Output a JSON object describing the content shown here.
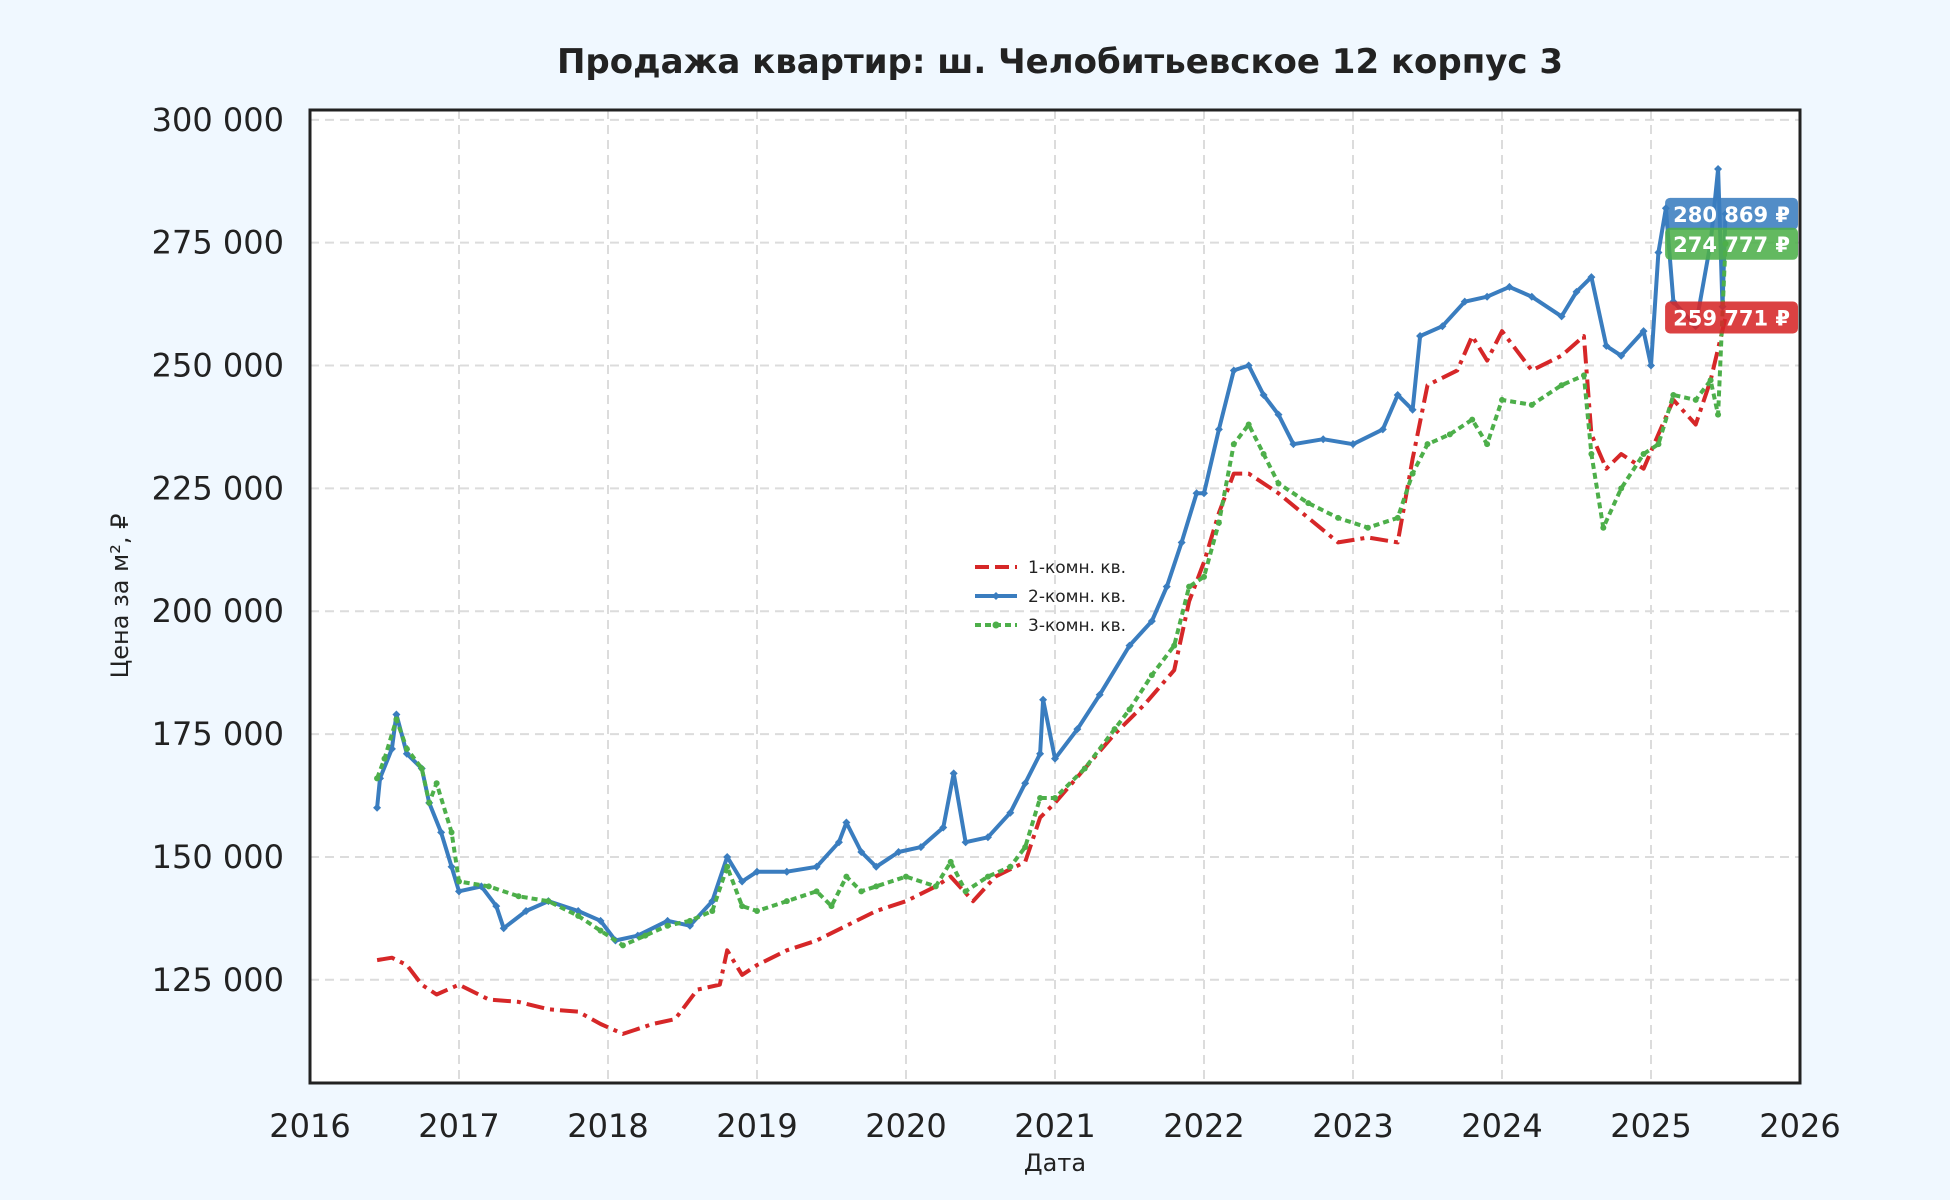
{
  "chart_data": {
    "type": "line",
    "title": "Продажа квартир: ш. Челобитьевское 12 корпус 3",
    "xlabel": "Дата",
    "ylabel": "Цена за м², ₽",
    "xlim": [
      2016,
      2026
    ],
    "ylim": [
      104000,
      302000
    ],
    "x_ticks": [
      "2016",
      "2017",
      "2018",
      "2019",
      "2020",
      "2021",
      "2022",
      "2023",
      "2024",
      "2025",
      "2026"
    ],
    "y_ticks": [
      "125 000",
      "150 000",
      "175 000",
      "200 000",
      "225 000",
      "250 000",
      "275 000",
      "300 000"
    ],
    "grid": true,
    "legend_position": "center",
    "series": [
      {
        "name": "1-комн. кв.",
        "color": "#d62728",
        "line_style": "dash-dot",
        "end_label": "259 771 ₽",
        "points": [
          [
            2016.45,
            129000
          ],
          [
            2016.55,
            129500
          ],
          [
            2016.65,
            128000
          ],
          [
            2016.75,
            124000
          ],
          [
            2016.85,
            122000
          ],
          [
            2017.0,
            124000
          ],
          [
            2017.2,
            121000
          ],
          [
            2017.4,
            120500
          ],
          [
            2017.6,
            119000
          ],
          [
            2017.8,
            118500
          ],
          [
            2017.95,
            116000
          ],
          [
            2018.1,
            114000
          ],
          [
            2018.3,
            116000
          ],
          [
            2018.45,
            117000
          ],
          [
            2018.6,
            123000
          ],
          [
            2018.75,
            124000
          ],
          [
            2018.8,
            131000
          ],
          [
            2018.9,
            126000
          ],
          [
            2019.0,
            128000
          ],
          [
            2019.2,
            131000
          ],
          [
            2019.4,
            133000
          ],
          [
            2019.6,
            136000
          ],
          [
            2019.8,
            139000
          ],
          [
            2020.0,
            141000
          ],
          [
            2020.2,
            144000
          ],
          [
            2020.3,
            146000
          ],
          [
            2020.45,
            141000
          ],
          [
            2020.6,
            146000
          ],
          [
            2020.8,
            149000
          ],
          [
            2020.9,
            158000
          ],
          [
            2021.0,
            161000
          ],
          [
            2021.2,
            168000
          ],
          [
            2021.4,
            175000
          ],
          [
            2021.6,
            181000
          ],
          [
            2021.8,
            188000
          ],
          [
            2021.9,
            202000
          ],
          [
            2022.0,
            210000
          ],
          [
            2022.1,
            220000
          ],
          [
            2022.2,
            228000
          ],
          [
            2022.3,
            228000
          ],
          [
            2022.5,
            224000
          ],
          [
            2022.7,
            219000
          ],
          [
            2022.9,
            214000
          ],
          [
            2023.1,
            215000
          ],
          [
            2023.3,
            214000
          ],
          [
            2023.4,
            231000
          ],
          [
            2023.5,
            246000
          ],
          [
            2023.7,
            249000
          ],
          [
            2023.8,
            256000
          ],
          [
            2023.9,
            251000
          ],
          [
            2024.0,
            257000
          ],
          [
            2024.2,
            249000
          ],
          [
            2024.4,
            252000
          ],
          [
            2024.55,
            256000
          ],
          [
            2024.6,
            236000
          ],
          [
            2024.7,
            229000
          ],
          [
            2024.8,
            232000
          ],
          [
            2024.95,
            229000
          ],
          [
            2025.05,
            236000
          ],
          [
            2025.15,
            243000
          ],
          [
            2025.3,
            238000
          ],
          [
            2025.4,
            247000
          ],
          [
            2025.5,
            259771
          ]
        ]
      },
      {
        "name": "2-комн. кв.",
        "color": "#3a7dbf",
        "line_style": "solid",
        "end_label": "280 869 ₽",
        "points": [
          [
            2016.45,
            160000
          ],
          [
            2016.47,
            166000
          ],
          [
            2016.55,
            172000
          ],
          [
            2016.58,
            179000
          ],
          [
            2016.65,
            171000
          ],
          [
            2016.75,
            168000
          ],
          [
            2016.8,
            161000
          ],
          [
            2016.88,
            155000
          ],
          [
            2016.95,
            148000
          ],
          [
            2017.0,
            143000
          ],
          [
            2017.15,
            144000
          ],
          [
            2017.25,
            140000
          ],
          [
            2017.3,
            135500
          ],
          [
            2017.45,
            139000
          ],
          [
            2017.6,
            141000
          ],
          [
            2017.8,
            139000
          ],
          [
            2017.95,
            137000
          ],
          [
            2018.05,
            133000
          ],
          [
            2018.2,
            134000
          ],
          [
            2018.4,
            137000
          ],
          [
            2018.55,
            136000
          ],
          [
            2018.7,
            141000
          ],
          [
            2018.8,
            150000
          ],
          [
            2018.9,
            145000
          ],
          [
            2019.0,
            147000
          ],
          [
            2019.2,
            147000
          ],
          [
            2019.4,
            148000
          ],
          [
            2019.55,
            153000
          ],
          [
            2019.6,
            157000
          ],
          [
            2019.7,
            151000
          ],
          [
            2019.8,
            148000
          ],
          [
            2019.95,
            151000
          ],
          [
            2020.1,
            152000
          ],
          [
            2020.25,
            156000
          ],
          [
            2020.32,
            167000
          ],
          [
            2020.4,
            153000
          ],
          [
            2020.55,
            154000
          ],
          [
            2020.7,
            159000
          ],
          [
            2020.8,
            165000
          ],
          [
            2020.9,
            171000
          ],
          [
            2020.92,
            182000
          ],
          [
            2021.0,
            170000
          ],
          [
            2021.15,
            176000
          ],
          [
            2021.3,
            183000
          ],
          [
            2021.5,
            193000
          ],
          [
            2021.65,
            198000
          ],
          [
            2021.75,
            205000
          ],
          [
            2021.85,
            214000
          ],
          [
            2021.95,
            224000
          ],
          [
            2022.0,
            224000
          ],
          [
            2022.1,
            237000
          ],
          [
            2022.2,
            249000
          ],
          [
            2022.3,
            250000
          ],
          [
            2022.4,
            244000
          ],
          [
            2022.5,
            240000
          ],
          [
            2022.6,
            234000
          ],
          [
            2022.8,
            235000
          ],
          [
            2023.0,
            234000
          ],
          [
            2023.2,
            237000
          ],
          [
            2023.3,
            244000
          ],
          [
            2023.4,
            241000
          ],
          [
            2023.45,
            256000
          ],
          [
            2023.6,
            258000
          ],
          [
            2023.75,
            263000
          ],
          [
            2023.9,
            264000
          ],
          [
            2024.05,
            266000
          ],
          [
            2024.2,
            264000
          ],
          [
            2024.4,
            260000
          ],
          [
            2024.5,
            265000
          ],
          [
            2024.6,
            268000
          ],
          [
            2024.7,
            254000
          ],
          [
            2024.8,
            252000
          ],
          [
            2024.95,
            257000
          ],
          [
            2025.0,
            250000
          ],
          [
            2025.05,
            273000
          ],
          [
            2025.1,
            282000
          ],
          [
            2025.15,
            263000
          ],
          [
            2025.3,
            258000
          ],
          [
            2025.4,
            275000
          ],
          [
            2025.45,
            290000
          ],
          [
            2025.48,
            262000
          ],
          [
            2025.5,
            280869
          ]
        ]
      },
      {
        "name": "3-комн. кв.",
        "color": "#4daf4a",
        "line_style": "dotted",
        "end_label": "274 777 ₽",
        "points": [
          [
            2016.45,
            166000
          ],
          [
            2016.5,
            170000
          ],
          [
            2016.58,
            178000
          ],
          [
            2016.65,
            172000
          ],
          [
            2016.75,
            168000
          ],
          [
            2016.8,
            161000
          ],
          [
            2016.85,
            165000
          ],
          [
            2016.95,
            155000
          ],
          [
            2017.0,
            145000
          ],
          [
            2017.2,
            144000
          ],
          [
            2017.4,
            142000
          ],
          [
            2017.6,
            141000
          ],
          [
            2017.8,
            138000
          ],
          [
            2017.95,
            135000
          ],
          [
            2018.1,
            132000
          ],
          [
            2018.25,
            134000
          ],
          [
            2018.4,
            136000
          ],
          [
            2018.55,
            137000
          ],
          [
            2018.7,
            139000
          ],
          [
            2018.8,
            148000
          ],
          [
            2018.9,
            140000
          ],
          [
            2019.0,
            139000
          ],
          [
            2019.2,
            141000
          ],
          [
            2019.4,
            143000
          ],
          [
            2019.5,
            140000
          ],
          [
            2019.6,
            146000
          ],
          [
            2019.7,
            143000
          ],
          [
            2019.8,
            144000
          ],
          [
            2020.0,
            146000
          ],
          [
            2020.2,
            144000
          ],
          [
            2020.3,
            149000
          ],
          [
            2020.4,
            143000
          ],
          [
            2020.55,
            146000
          ],
          [
            2020.7,
            148000
          ],
          [
            2020.8,
            152000
          ],
          [
            2020.9,
            162000
          ],
          [
            2021.0,
            162000
          ],
          [
            2021.2,
            168000
          ],
          [
            2021.4,
            176000
          ],
          [
            2021.5,
            180000
          ],
          [
            2021.65,
            187000
          ],
          [
            2021.8,
            193000
          ],
          [
            2021.9,
            205000
          ],
          [
            2022.0,
            207000
          ],
          [
            2022.1,
            218000
          ],
          [
            2022.2,
            234000
          ],
          [
            2022.3,
            238000
          ],
          [
            2022.4,
            232000
          ],
          [
            2022.5,
            226000
          ],
          [
            2022.7,
            222000
          ],
          [
            2022.9,
            219000
          ],
          [
            2023.1,
            217000
          ],
          [
            2023.3,
            219000
          ],
          [
            2023.4,
            228000
          ],
          [
            2023.5,
            234000
          ],
          [
            2023.65,
            236000
          ],
          [
            2023.8,
            239000
          ],
          [
            2023.9,
            234000
          ],
          [
            2024.0,
            243000
          ],
          [
            2024.2,
            242000
          ],
          [
            2024.4,
            246000
          ],
          [
            2024.55,
            248000
          ],
          [
            2024.6,
            232000
          ],
          [
            2024.68,
            217000
          ],
          [
            2024.8,
            225000
          ],
          [
            2024.95,
            232000
          ],
          [
            2025.05,
            234000
          ],
          [
            2025.15,
            244000
          ],
          [
            2025.3,
            243000
          ],
          [
            2025.4,
            247000
          ],
          [
            2025.45,
            240000
          ],
          [
            2025.5,
            274777
          ]
        ]
      }
    ]
  }
}
